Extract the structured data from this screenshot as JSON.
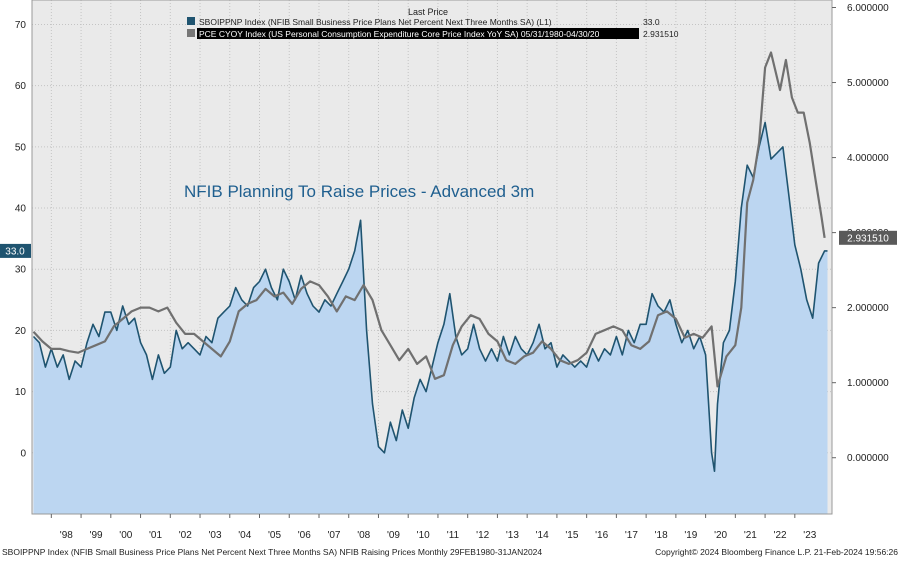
{
  "legend": {
    "header": "Last Price",
    "entries": [
      {
        "label": "SBOIPPNP Index (NFIB Small Business Price Plans Net Percent Next Three Months SA)  (L1)",
        "value": "33.0",
        "color": "#1f5470"
      },
      {
        "label": "PCE CYOY Index (US Personal Consumption Expenditure Core Price Index YoY SA) 05/31/1980-04/30/20",
        "value": "2.931510",
        "color": "#777777"
      }
    ]
  },
  "chart_title": "NFIB Planning To Raise Prices - Advanced 3m",
  "left_last_badge": "33.0",
  "right_last_badge": "2.931510",
  "footer": {
    "left": "SBOIPPNP Index (NFIB Small Business Price Plans Net Percent Next Three Months SA) NFIB Raising Prices  Monthly 29FEB1980-31JAN2024",
    "right": "Copyright© 2024 Bloomberg Finance L.P.   21-Feb-2024 19:56:26"
  },
  "chart_data": {
    "type": "area",
    "x_range": [
      1997.35,
      2024.25
    ],
    "left_axis": {
      "min": -10,
      "max": 74,
      "ticks": [
        0,
        10,
        20,
        30,
        40,
        50,
        60,
        70
      ]
    },
    "right_axis": {
      "min": -0.75,
      "max": 6.1,
      "ticks": [
        0,
        1,
        2,
        3,
        4,
        5,
        6
      ],
      "tick_labels": [
        "0.000000",
        "1.000000",
        "2.000000",
        "3.000000",
        "4.000000",
        "5.000000",
        "6.000000"
      ]
    },
    "x_ticks": [
      {
        "x": 1998,
        "label": "'98"
      },
      {
        "x": 1999,
        "label": "'99"
      },
      {
        "x": 2000,
        "label": "'00"
      },
      {
        "x": 2001,
        "label": "'01"
      },
      {
        "x": 2002,
        "label": "'02"
      },
      {
        "x": 2003,
        "label": "'03"
      },
      {
        "x": 2004,
        "label": "'04"
      },
      {
        "x": 2005,
        "label": "'05"
      },
      {
        "x": 2006,
        "label": "'06"
      },
      {
        "x": 2007,
        "label": "'07"
      },
      {
        "x": 2008,
        "label": "'08"
      },
      {
        "x": 2009,
        "label": "'09"
      },
      {
        "x": 2010,
        "label": "'10"
      },
      {
        "x": 2011,
        "label": "'11"
      },
      {
        "x": 2012,
        "label": "'12"
      },
      {
        "x": 2013,
        "label": "'13"
      },
      {
        "x": 2014,
        "label": "'14"
      },
      {
        "x": 2015,
        "label": "'15"
      },
      {
        "x": 2016,
        "label": "'16"
      },
      {
        "x": 2017,
        "label": "'17"
      },
      {
        "x": 2018,
        "label": "'18"
      },
      {
        "x": 2019,
        "label": "'19"
      },
      {
        "x": 2020,
        "label": "'20"
      },
      {
        "x": 2021,
        "label": "'21"
      },
      {
        "x": 2022,
        "label": "'22"
      },
      {
        "x": 2023,
        "label": "'23"
      }
    ],
    "series": [
      {
        "name": "SBOIPPNP Index (NFIB Small Business Price Plans Net Percent Next Three Months SA)",
        "axis": "left",
        "style": "area",
        "line_color": "#1f5470",
        "fill_color": "#bcd6f1",
        "points": [
          [
            1997.4,
            19
          ],
          [
            1997.6,
            18
          ],
          [
            1997.8,
            14
          ],
          [
            1998.0,
            17
          ],
          [
            1998.2,
            14
          ],
          [
            1998.4,
            16
          ],
          [
            1998.6,
            12
          ],
          [
            1998.8,
            15
          ],
          [
            1999.0,
            14
          ],
          [
            1999.2,
            18
          ],
          [
            1999.4,
            21
          ],
          [
            1999.6,
            19
          ],
          [
            1999.8,
            23
          ],
          [
            2000.0,
            23
          ],
          [
            2000.2,
            20
          ],
          [
            2000.4,
            24
          ],
          [
            2000.6,
            21
          ],
          [
            2000.8,
            22
          ],
          [
            2001.0,
            18
          ],
          [
            2001.2,
            16
          ],
          [
            2001.4,
            12
          ],
          [
            2001.6,
            16
          ],
          [
            2001.8,
            13
          ],
          [
            2002.0,
            14
          ],
          [
            2002.2,
            20
          ],
          [
            2002.4,
            17
          ],
          [
            2002.6,
            18
          ],
          [
            2002.8,
            17
          ],
          [
            2003.0,
            16
          ],
          [
            2003.2,
            19
          ],
          [
            2003.4,
            18
          ],
          [
            2003.6,
            22
          ],
          [
            2003.8,
            23
          ],
          [
            2004.0,
            24
          ],
          [
            2004.2,
            27
          ],
          [
            2004.4,
            25
          ],
          [
            2004.6,
            24
          ],
          [
            2004.8,
            27
          ],
          [
            2005.0,
            28
          ],
          [
            2005.2,
            30
          ],
          [
            2005.4,
            27
          ],
          [
            2005.6,
            25
          ],
          [
            2005.8,
            30
          ],
          [
            2006.0,
            28
          ],
          [
            2006.2,
            25
          ],
          [
            2006.4,
            29
          ],
          [
            2006.6,
            26
          ],
          [
            2006.8,
            24
          ],
          [
            2007.0,
            23
          ],
          [
            2007.2,
            25
          ],
          [
            2007.4,
            24
          ],
          [
            2007.6,
            26
          ],
          [
            2007.8,
            28
          ],
          [
            2008.0,
            30
          ],
          [
            2008.2,
            33
          ],
          [
            2008.4,
            38
          ],
          [
            2008.6,
            20
          ],
          [
            2008.8,
            8
          ],
          [
            2009.0,
            1
          ],
          [
            2009.2,
            0
          ],
          [
            2009.4,
            5
          ],
          [
            2009.6,
            2
          ],
          [
            2009.8,
            7
          ],
          [
            2010.0,
            4
          ],
          [
            2010.2,
            9
          ],
          [
            2010.4,
            12
          ],
          [
            2010.6,
            10
          ],
          [
            2010.8,
            14
          ],
          [
            2011.0,
            18
          ],
          [
            2011.2,
            21
          ],
          [
            2011.4,
            26
          ],
          [
            2011.6,
            19
          ],
          [
            2011.8,
            16
          ],
          [
            2012.0,
            17
          ],
          [
            2012.2,
            21
          ],
          [
            2012.4,
            17
          ],
          [
            2012.6,
            15
          ],
          [
            2012.8,
            17
          ],
          [
            2013.0,
            15
          ],
          [
            2013.2,
            19
          ],
          [
            2013.4,
            16
          ],
          [
            2013.6,
            19
          ],
          [
            2013.8,
            17
          ],
          [
            2014.0,
            16
          ],
          [
            2014.2,
            18
          ],
          [
            2014.4,
            21
          ],
          [
            2014.6,
            17
          ],
          [
            2014.8,
            18
          ],
          [
            2015.0,
            14
          ],
          [
            2015.2,
            16
          ],
          [
            2015.4,
            15
          ],
          [
            2015.6,
            14
          ],
          [
            2015.8,
            15
          ],
          [
            2016.0,
            14
          ],
          [
            2016.2,
            17
          ],
          [
            2016.4,
            15
          ],
          [
            2016.6,
            17
          ],
          [
            2016.8,
            16
          ],
          [
            2017.0,
            19
          ],
          [
            2017.2,
            16
          ],
          [
            2017.4,
            20
          ],
          [
            2017.6,
            18
          ],
          [
            2017.8,
            21
          ],
          [
            2018.0,
            21
          ],
          [
            2018.2,
            26
          ],
          [
            2018.4,
            24
          ],
          [
            2018.6,
            23
          ],
          [
            2018.8,
            25
          ],
          [
            2019.0,
            21
          ],
          [
            2019.2,
            18
          ],
          [
            2019.4,
            20
          ],
          [
            2019.6,
            17
          ],
          [
            2019.8,
            19
          ],
          [
            2020.0,
            16
          ],
          [
            2020.2,
            0
          ],
          [
            2020.3,
            -3
          ],
          [
            2020.4,
            8
          ],
          [
            2020.6,
            18
          ],
          [
            2020.8,
            20
          ],
          [
            2021.0,
            28
          ],
          [
            2021.2,
            40
          ],
          [
            2021.4,
            47
          ],
          [
            2021.6,
            45
          ],
          [
            2021.8,
            50
          ],
          [
            2022.0,
            54
          ],
          [
            2022.2,
            48
          ],
          [
            2022.4,
            49
          ],
          [
            2022.6,
            50
          ],
          [
            2022.8,
            42
          ],
          [
            2023.0,
            34
          ],
          [
            2023.2,
            30
          ],
          [
            2023.4,
            25
          ],
          [
            2023.6,
            22
          ],
          [
            2023.8,
            31
          ],
          [
            2024.0,
            33
          ],
          [
            2024.1,
            33
          ]
        ]
      },
      {
        "name": "PCE CYOY Index (US Personal Consumption Expenditure Core Price Index YoY SA)",
        "axis": "right",
        "style": "line",
        "line_color": "#707070",
        "points": [
          [
            1997.4,
            1.68
          ],
          [
            1997.7,
            1.55
          ],
          [
            1998.0,
            1.45
          ],
          [
            1998.3,
            1.45
          ],
          [
            1998.6,
            1.42
          ],
          [
            1998.9,
            1.4
          ],
          [
            1999.2,
            1.45
          ],
          [
            1999.5,
            1.5
          ],
          [
            1999.8,
            1.55
          ],
          [
            2000.1,
            1.75
          ],
          [
            2000.4,
            1.85
          ],
          [
            2000.7,
            1.95
          ],
          [
            2001.0,
            2.0
          ],
          [
            2001.3,
            2.0
          ],
          [
            2001.6,
            1.95
          ],
          [
            2001.9,
            2.0
          ],
          [
            2002.2,
            1.8
          ],
          [
            2002.5,
            1.65
          ],
          [
            2002.8,
            1.65
          ],
          [
            2003.1,
            1.55
          ],
          [
            2003.4,
            1.45
          ],
          [
            2003.7,
            1.35
          ],
          [
            2004.0,
            1.55
          ],
          [
            2004.3,
            1.95
          ],
          [
            2004.6,
            2.05
          ],
          [
            2004.9,
            2.1
          ],
          [
            2005.2,
            2.25
          ],
          [
            2005.5,
            2.15
          ],
          [
            2005.8,
            2.2
          ],
          [
            2006.1,
            2.05
          ],
          [
            2006.4,
            2.25
          ],
          [
            2006.7,
            2.35
          ],
          [
            2007.0,
            2.3
          ],
          [
            2007.3,
            2.15
          ],
          [
            2007.6,
            1.95
          ],
          [
            2007.9,
            2.15
          ],
          [
            2008.2,
            2.1
          ],
          [
            2008.5,
            2.3
          ],
          [
            2008.8,
            2.1
          ],
          [
            2009.1,
            1.7
          ],
          [
            2009.4,
            1.5
          ],
          [
            2009.7,
            1.3
          ],
          [
            2010.0,
            1.45
          ],
          [
            2010.3,
            1.25
          ],
          [
            2010.6,
            1.35
          ],
          [
            2010.9,
            1.05
          ],
          [
            2011.2,
            1.1
          ],
          [
            2011.5,
            1.5
          ],
          [
            2011.8,
            1.75
          ],
          [
            2012.1,
            1.9
          ],
          [
            2012.4,
            1.85
          ],
          [
            2012.7,
            1.65
          ],
          [
            2013.0,
            1.55
          ],
          [
            2013.3,
            1.3
          ],
          [
            2013.6,
            1.25
          ],
          [
            2013.9,
            1.35
          ],
          [
            2014.2,
            1.4
          ],
          [
            2014.5,
            1.55
          ],
          [
            2014.8,
            1.45
          ],
          [
            2015.1,
            1.3
          ],
          [
            2015.4,
            1.25
          ],
          [
            2015.7,
            1.3
          ],
          [
            2016.0,
            1.4
          ],
          [
            2016.3,
            1.65
          ],
          [
            2016.6,
            1.7
          ],
          [
            2016.9,
            1.75
          ],
          [
            2017.2,
            1.7
          ],
          [
            2017.5,
            1.5
          ],
          [
            2017.8,
            1.45
          ],
          [
            2018.1,
            1.55
          ],
          [
            2018.4,
            1.9
          ],
          [
            2018.7,
            1.95
          ],
          [
            2019.0,
            1.85
          ],
          [
            2019.3,
            1.6
          ],
          [
            2019.6,
            1.65
          ],
          [
            2019.9,
            1.6
          ],
          [
            2020.2,
            1.75
          ],
          [
            2020.4,
            0.95
          ],
          [
            2020.7,
            1.35
          ],
          [
            2021.0,
            1.5
          ],
          [
            2021.2,
            2.0
          ],
          [
            2021.4,
            3.4
          ],
          [
            2021.6,
            3.7
          ],
          [
            2021.8,
            4.2
          ],
          [
            2022.0,
            5.2
          ],
          [
            2022.2,
            5.4
          ],
          [
            2022.5,
            4.9
          ],
          [
            2022.7,
            5.3
          ],
          [
            2022.9,
            4.8
          ],
          [
            2023.1,
            4.6
          ],
          [
            2023.3,
            4.6
          ],
          [
            2023.5,
            4.2
          ],
          [
            2023.7,
            3.7
          ],
          [
            2023.9,
            3.2
          ],
          [
            2024.0,
            2.93
          ]
        ]
      }
    ]
  }
}
